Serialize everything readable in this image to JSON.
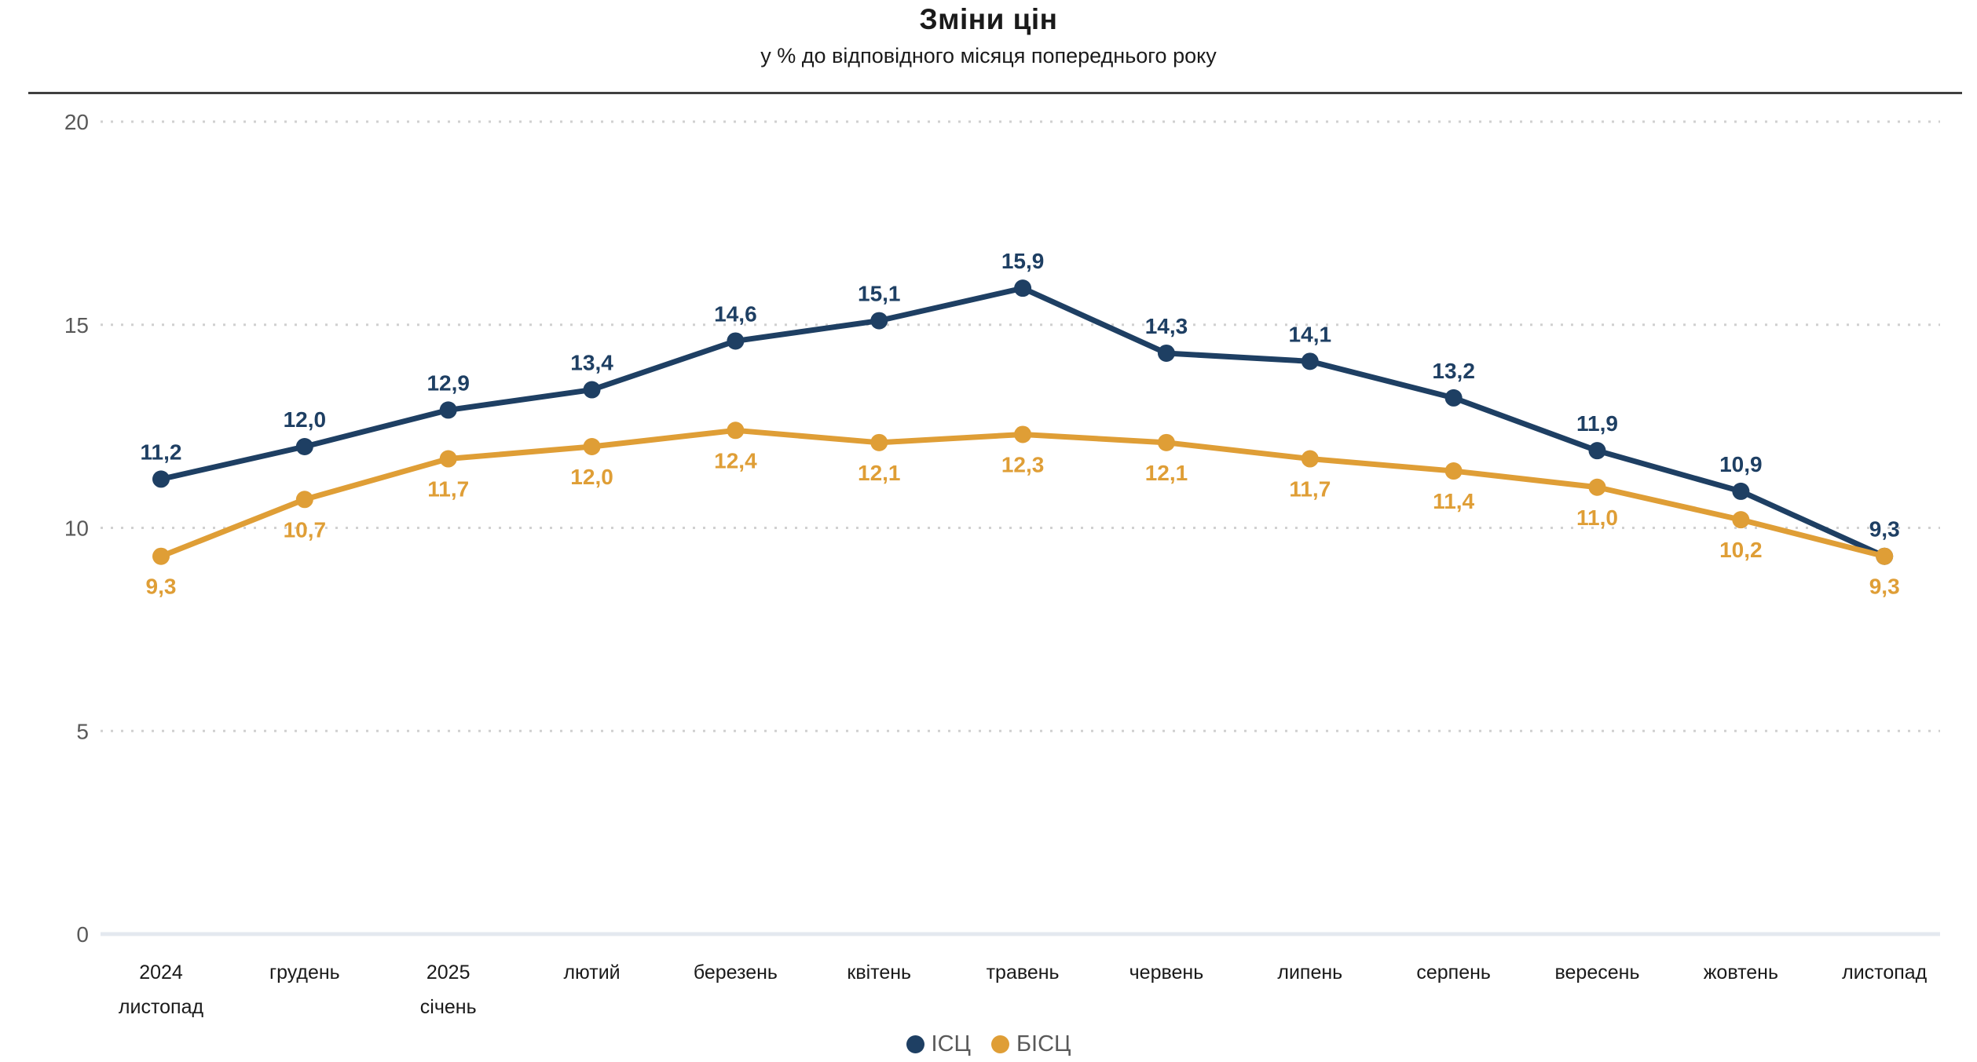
{
  "page": {
    "title": "Зміни цін",
    "subtitle": "у % до відповідного місяця попереднього року"
  },
  "chart_data": {
    "type": "line",
    "title": "Зміни цін",
    "subtitle": "у % до відповідного місяця попереднього року",
    "categories": [
      [
        "2024",
        "листопад"
      ],
      [
        "грудень"
      ],
      [
        "2025",
        "січень"
      ],
      [
        "лютий"
      ],
      [
        "березень"
      ],
      [
        "квітень"
      ],
      [
        "травень"
      ],
      [
        "червень"
      ],
      [
        "липень"
      ],
      [
        "серпень"
      ],
      [
        "вересень"
      ],
      [
        "жовтень"
      ],
      [
        "листопад"
      ]
    ],
    "series": [
      {
        "key": "icp",
        "name": "ІСЦ",
        "color": "#1E3F63",
        "values": [
          11.2,
          12.0,
          12.9,
          13.4,
          14.6,
          15.1,
          15.9,
          14.3,
          14.1,
          13.2,
          11.9,
          10.9,
          9.3
        ],
        "label_position": "above"
      },
      {
        "key": "bicp",
        "name": "БІСЦ",
        "color": "#DF9E36",
        "values": [
          9.3,
          10.7,
          11.7,
          12.0,
          12.4,
          12.1,
          12.3,
          12.1,
          11.7,
          11.4,
          11.0,
          10.2,
          9.3
        ],
        "label_position": "below"
      }
    ],
    "y_ticks": [
      0,
      5,
      10,
      15,
      20
    ],
    "ylim": [
      0,
      20
    ],
    "grid": "horizontal-dotted",
    "legend_position": "bottom-center",
    "value_decimal_separator": ","
  },
  "legend": {
    "items": [
      {
        "label": "ІСЦ",
        "color": "#1E3F63"
      },
      {
        "label": "БІСЦ",
        "color": "#DF9E36"
      }
    ]
  },
  "colors": {
    "series_icp": "#1E3F63",
    "series_bicp": "#DF9E36",
    "axis_text": "#595959",
    "category_text": "#1a1a1a",
    "grid": "#D0D0D0",
    "zero_axis": "#E4E9EF",
    "separator": "#3F3F3F",
    "background": "#FFFFFF"
  }
}
